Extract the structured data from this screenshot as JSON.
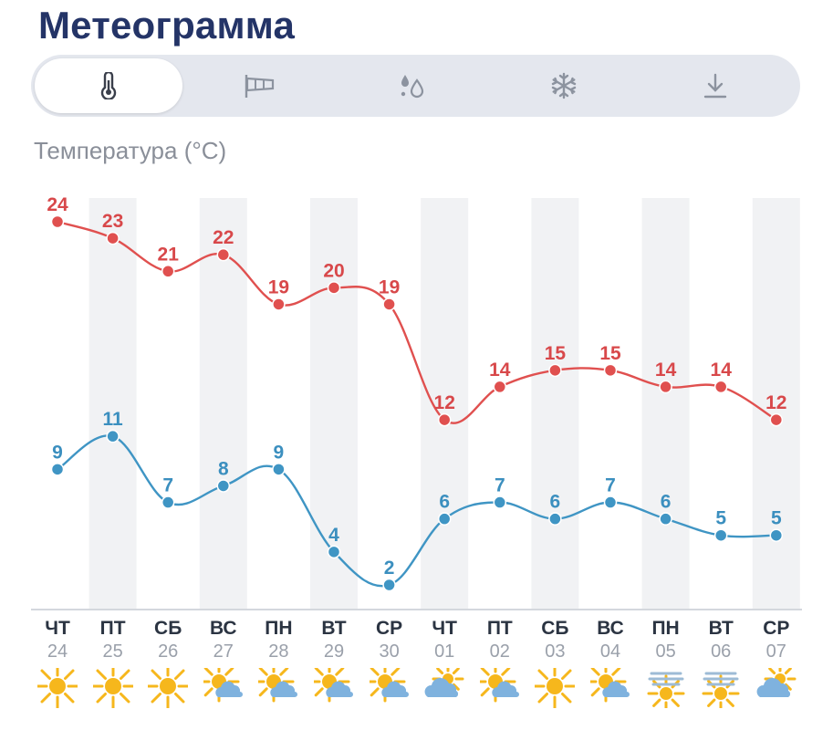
{
  "title": "Метеограмма",
  "tabs": [
    {
      "icon": "thermometer-icon",
      "active": true
    },
    {
      "icon": "wind-sock-icon",
      "active": false
    },
    {
      "icon": "water-drops-icon",
      "active": false
    },
    {
      "icon": "snowflake-icon",
      "active": false
    },
    {
      "icon": "download-icon",
      "active": false
    }
  ],
  "subtitle": "Температура (°C)",
  "colors": {
    "max": "#e0504f",
    "min": "#3f95c4",
    "title": "#243467",
    "stripe": "#f1f2f4"
  },
  "chart_data": {
    "type": "line",
    "categories": [
      "24",
      "25",
      "26",
      "27",
      "28",
      "29",
      "30",
      "01",
      "02",
      "03",
      "04",
      "05",
      "06",
      "07"
    ],
    "weekdays": [
      "ЧТ",
      "ПТ",
      "СБ",
      "ВС",
      "ПН",
      "ВТ",
      "СР",
      "ЧТ",
      "ПТ",
      "СБ",
      "ВС",
      "ПН",
      "ВТ",
      "СР"
    ],
    "series": [
      {
        "values": [
          24,
          23,
          21,
          22,
          19,
          20,
          19,
          12,
          14,
          15,
          15,
          14,
          14,
          12
        ]
      },
      {
        "values": [
          9,
          11,
          7,
          8,
          9,
          4,
          2,
          6,
          7,
          6,
          7,
          6,
          5,
          5
        ]
      }
    ],
    "ylim": [
      2,
      24
    ],
    "grid": false,
    "stripes": "alternate columns"
  },
  "weather_icons": [
    "sun-icon",
    "sun-icon",
    "sun-icon",
    "sun-cloud-icon",
    "sun-cloud-icon",
    "sun-cloud-icon",
    "sun-cloud-icon",
    "cloud-sun-icon",
    "sun-cloud-icon",
    "sun-icon",
    "sun-cloud-icon",
    "fog-sun-icon",
    "fog-sun-icon",
    "cloud-sun-icon"
  ]
}
